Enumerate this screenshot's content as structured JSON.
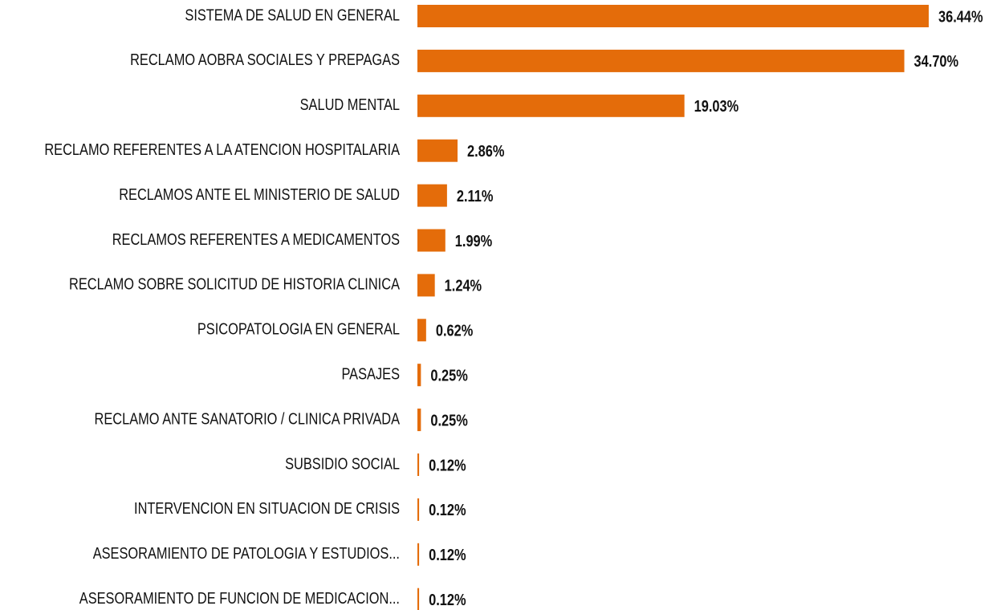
{
  "chart_data": {
    "type": "bar",
    "orientation": "horizontal",
    "color": "#e46c0a",
    "categories": [
      "SISTEMA DE SALUD EN GENERAL",
      "RECLAMO AOBRA SOCIALES Y PREPAGAS",
      "SALUD MENTAL",
      "RECLAMO REFERENTES A LA ATENCION HOSPITALARIA",
      "RECLAMOS ANTE EL MINISTERIO DE SALUD",
      "RECLAMOS REFERENTES A MEDICAMENTOS",
      "RECLAMO SOBRE SOLICITUD DE HISTORIA CLINICA",
      "PSICOPATOLOGIA EN GENERAL",
      "PASAJES",
      "RECLAMO ANTE SANATORIO / CLINICA PRIVADA",
      "SUBSIDIO SOCIAL",
      "INTERVENCION EN SITUACION DE CRISIS",
      "ASESORAMIENTO DE PATOLOGIA Y ESTUDIOS...",
      "ASESORAMIENTO DE FUNCION DE MEDICACION..."
    ],
    "values": [
      36.44,
      34.7,
      19.03,
      2.86,
      2.11,
      1.99,
      1.24,
      0.62,
      0.25,
      0.25,
      0.12,
      0.12,
      0.12,
      0.12
    ],
    "value_labels": [
      "36.44%",
      "34.70%",
      "19.03%",
      "2.86%",
      "2.11%",
      "1.99%",
      "1.24%",
      "0.62%",
      "0.25%",
      "0.25%",
      "0.12%",
      "0.12%",
      "0.12%",
      "0.12%"
    ]
  }
}
